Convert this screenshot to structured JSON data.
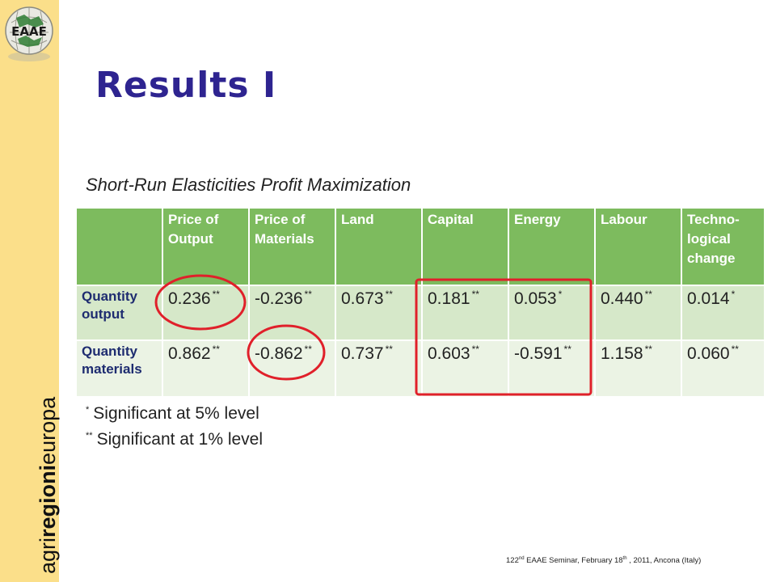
{
  "logo": {
    "text": "EAAE"
  },
  "brand": {
    "prefix": "agri",
    "bold": "regioni",
    "suffix": "europa"
  },
  "title": "Results I",
  "subtitle": "Short-Run Elasticities Profit Maximization",
  "table": {
    "headers": [
      "",
      "Price of Output",
      "Price of Materials",
      "Land",
      "Capital",
      "Energy",
      "Labour",
      "Techno-logical change"
    ],
    "rows": [
      {
        "label": "Quantity output",
        "cells": [
          {
            "value": "0.236",
            "sig": "**"
          },
          {
            "value": "-0.236",
            "sig": "**"
          },
          {
            "value": "0.673",
            "sig": "**"
          },
          {
            "value": "0.181",
            "sig": "**"
          },
          {
            "value": "0.053",
            "sig": "*"
          },
          {
            "value": "0.440",
            "sig": "**"
          },
          {
            "value": "0.014",
            "sig": "*"
          }
        ]
      },
      {
        "label": "Quantity materials",
        "cells": [
          {
            "value": "0.862",
            "sig": "**"
          },
          {
            "value": "-0.862",
            "sig": "**"
          },
          {
            "value": "0.737",
            "sig": "**"
          },
          {
            "value": "0.603",
            "sig": "**"
          },
          {
            "value": "-0.591",
            "sig": "**"
          },
          {
            "value": "1.158",
            "sig": "**"
          },
          {
            "value": "0.060",
            "sig": "**"
          }
        ]
      }
    ]
  },
  "notes": [
    {
      "mark": "*",
      "text": "Significant at 5% level"
    },
    {
      "mark": "**",
      "text": "Significant at 1% level"
    }
  ],
  "footer": {
    "pre": "122",
    "pre_sup": "nd",
    "mid": " EAAE Seminar, February 18",
    "mid_sup": "th",
    "post": " , 2011, Ancona (Italy)"
  },
  "colors": {
    "sidebar": "#fbdf8a",
    "title": "#2e2490",
    "header_green": "#7dbb5e",
    "row_green": "#d6e8c9",
    "highlight_red": "#e0202a"
  }
}
